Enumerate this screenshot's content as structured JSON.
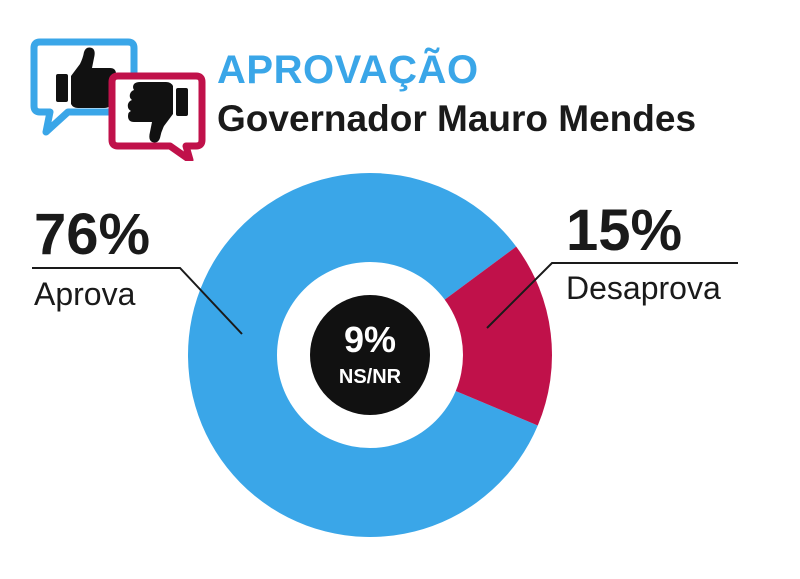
{
  "colors": {
    "approve": "#3aa6e8",
    "disapprove": "#c0114a",
    "none": "#111111",
    "title_accent": "#3aa6e8",
    "text": "#1a1a1a",
    "center_text": "#ffffff"
  },
  "header": {
    "title": "APROVAÇÃO",
    "subtitle": "Governador Mauro Mendes"
  },
  "chart_data": {
    "type": "pie",
    "title": "APROVAÇÃO",
    "subtitle": "Governador Mauro Mendes",
    "slices": [
      {
        "label": "Aprova",
        "value": 76,
        "display": "76%"
      },
      {
        "label": "Desaprova",
        "value": 15,
        "display": "15%"
      },
      {
        "label": "NS/NR",
        "value": 9,
        "display": "9%"
      }
    ]
  },
  "icons": {
    "approve": "thumbs-up-icon",
    "disapprove": "thumbs-down-icon"
  }
}
